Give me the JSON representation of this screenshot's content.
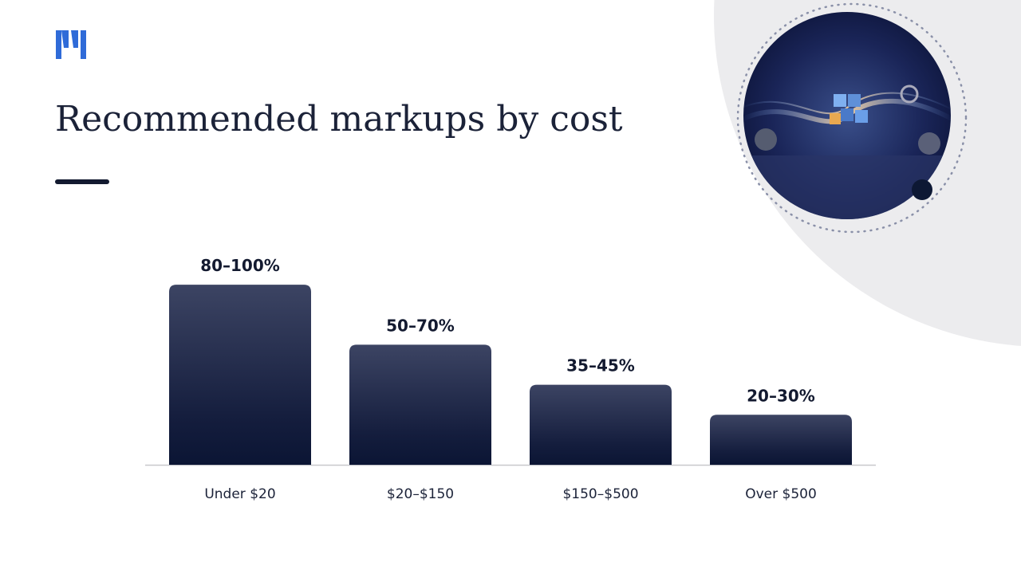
{
  "chart_data": {
    "type": "bar",
    "title": "Recommended markups by cost",
    "categories": [
      "Under $20",
      "$20–$150",
      "$150–$500",
      "Over $500"
    ],
    "values": [
      90,
      60,
      40,
      25
    ],
    "value_labels": [
      "80–100%",
      "50–70%",
      "35–45%",
      "20–30%"
    ],
    "ylim": [
      0,
      100
    ],
    "color": "#0d1838"
  }
}
